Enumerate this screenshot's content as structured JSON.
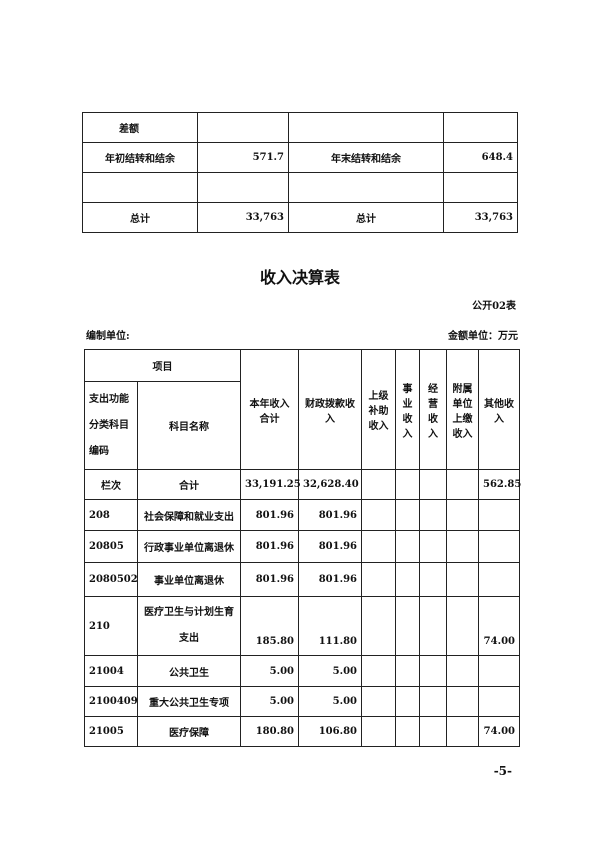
{
  "top_table": {
    "rows": [
      {
        "label": "差额",
        "value": "",
        "label2": "",
        "value2": ""
      },
      {
        "label": "年初结转和结余",
        "value": "571.7",
        "label2": "年末结转和结余",
        "value2": "648.4"
      },
      {
        "label": "",
        "value": "",
        "label2": "",
        "value2": ""
      },
      {
        "label": "总计",
        "value": "33,763",
        "label2": "总计",
        "value2": "33,763"
      }
    ]
  },
  "title": "收入决算表",
  "form_no": "公开02表",
  "unit_label": "编制单位:",
  "amount_unit": "金额单位：万元",
  "income_table": {
    "header_group": "项目",
    "col_code": "支出功能分类科目编码",
    "col_name": "科目名称",
    "col_total": "本年收入合计",
    "col_fiscal": "财政拨款收入",
    "col_superior": "上级补助收入",
    "col_business": "事业收入",
    "col_operating": "经营收入",
    "col_affiliated": "附属单位上缴收入",
    "col_other": "其他收入",
    "summary": {
      "code": "栏次",
      "name": "合计",
      "total": "33,191.25",
      "fiscal": "32,628.40",
      "other": "562.85"
    },
    "rows": [
      {
        "code": "208",
        "name": "社会保障和就业支出",
        "total": "801.96",
        "fiscal": "801.96",
        "other": ""
      },
      {
        "code": "20805",
        "name": "行政事业单位离退休",
        "total": "801.96",
        "fiscal": "801.96",
        "other": ""
      },
      {
        "code": "2080502",
        "name": "事业单位离退休",
        "total": "801.96",
        "fiscal": "801.96",
        "other": ""
      },
      {
        "code": "210",
        "name": "医疗卫生与计划生育支出",
        "total": "185.80",
        "fiscal": "111.80",
        "other": "74.00"
      },
      {
        "code": "21004",
        "name": "公共卫生",
        "total": "5.00",
        "fiscal": "5.00",
        "other": ""
      },
      {
        "code": "2100409",
        "name": "重大公共卫生专项",
        "total": "5.00",
        "fiscal": "5.00",
        "other": ""
      },
      {
        "code": "21005",
        "name": "医疗保障",
        "total": "180.80",
        "fiscal": "106.80",
        "other": "74.00"
      }
    ]
  },
  "page_number": "-5-"
}
